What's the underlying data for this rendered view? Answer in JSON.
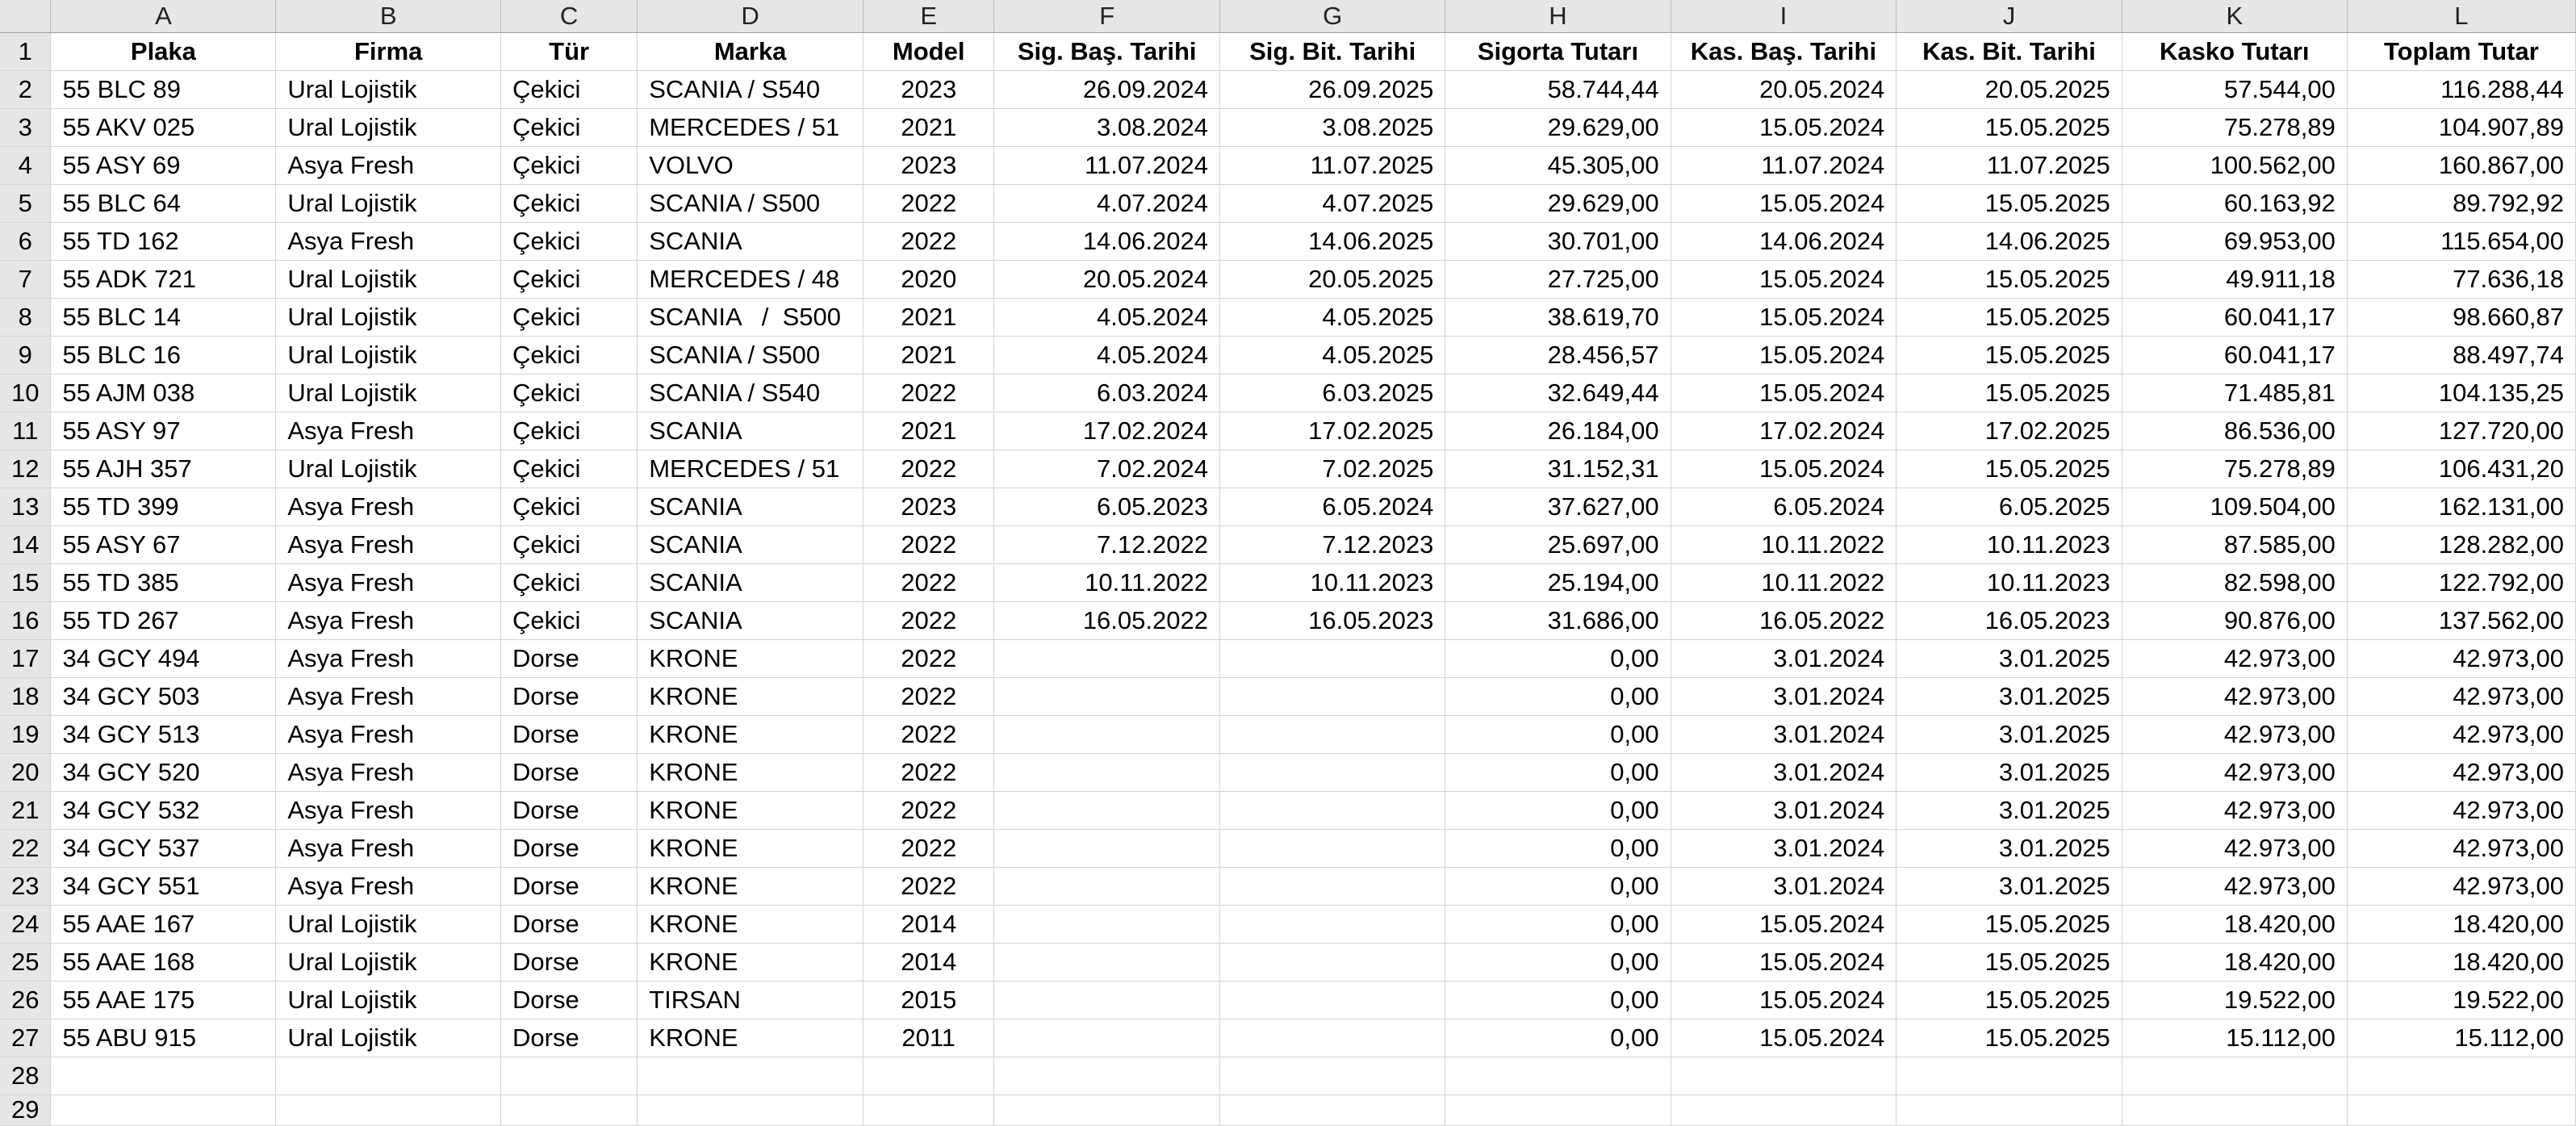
{
  "sheet": {
    "columns": [
      "A",
      "B",
      "C",
      "D",
      "E",
      "F",
      "G",
      "H",
      "I",
      "J",
      "K",
      "L"
    ],
    "headers": [
      "Plaka",
      "Firma",
      "Tür",
      "Marka",
      "Model",
      "Sig. Baş. Tarihi",
      "Sig. Bit. Tarihi",
      "Sigorta Tutarı",
      "Kas. Baş. Tarihi",
      "Kas. Bit. Tarihi",
      "Kasko Tutarı",
      "Toplam Tutar"
    ],
    "rows": [
      [
        "55 BLC 89",
        "Ural Lojistik",
        "Çekici",
        "SCANIA / S540",
        "2023",
        "26.09.2024",
        "26.09.2025",
        "58.744,44",
        "20.05.2024",
        "20.05.2025",
        "57.544,00",
        "116.288,44"
      ],
      [
        "55 AKV 025",
        "Ural Lojistik",
        "Çekici",
        "MERCEDES / 51",
        "2021",
        "3.08.2024",
        "3.08.2025",
        "29.629,00",
        "15.05.2024",
        "15.05.2025",
        "75.278,89",
        "104.907,89"
      ],
      [
        "55 ASY 69",
        "Asya Fresh",
        "Çekici",
        "VOLVO",
        "2023",
        "11.07.2024",
        "11.07.2025",
        "45.305,00",
        "11.07.2024",
        "11.07.2025",
        "100.562,00",
        "160.867,00"
      ],
      [
        "55 BLC 64",
        "Ural Lojistik",
        "Çekici",
        "SCANIA / S500",
        "2022",
        "4.07.2024",
        "4.07.2025",
        "29.629,00",
        "15.05.2024",
        "15.05.2025",
        "60.163,92",
        "89.792,92"
      ],
      [
        "55 TD 162",
        "Asya Fresh",
        "Çekici",
        "SCANIA",
        "2022",
        "14.06.2024",
        "14.06.2025",
        "30.701,00",
        "14.06.2024",
        "14.06.2025",
        "69.953,00",
        "115.654,00"
      ],
      [
        "55 ADK 721",
        "Ural Lojistik",
        "Çekici",
        "MERCEDES / 48",
        "2020",
        "20.05.2024",
        "20.05.2025",
        "27.725,00",
        "15.05.2024",
        "15.05.2025",
        "49.911,18",
        "77.636,18"
      ],
      [
        "55 BLC 14",
        "Ural Lojistik",
        "Çekici",
        "SCANIA   /  S500",
        "2021",
        "4.05.2024",
        "4.05.2025",
        "38.619,70",
        "15.05.2024",
        "15.05.2025",
        "60.041,17",
        "98.660,87"
      ],
      [
        "55 BLC 16",
        "Ural Lojistik",
        "Çekici",
        "SCANIA / S500",
        "2021",
        "4.05.2024",
        "4.05.2025",
        "28.456,57",
        "15.05.2024",
        "15.05.2025",
        "60.041,17",
        "88.497,74"
      ],
      [
        "55 AJM 038",
        "Ural Lojistik",
        "Çekici",
        "SCANIA / S540",
        "2022",
        "6.03.2024",
        "6.03.2025",
        "32.649,44",
        "15.05.2024",
        "15.05.2025",
        "71.485,81",
        "104.135,25"
      ],
      [
        "55 ASY 97",
        "Asya Fresh",
        "Çekici",
        "SCANIA",
        "2021",
        "17.02.2024",
        "17.02.2025",
        "26.184,00",
        "17.02.2024",
        "17.02.2025",
        "86.536,00",
        "127.720,00"
      ],
      [
        "55 AJH 357",
        "Ural Lojistik",
        "Çekici",
        "MERCEDES / 51",
        "2022",
        "7.02.2024",
        "7.02.2025",
        "31.152,31",
        "15.05.2024",
        "15.05.2025",
        "75.278,89",
        "106.431,20"
      ],
      [
        "55 TD 399",
        "Asya Fresh",
        "Çekici",
        "SCANIA",
        "2023",
        "6.05.2023",
        "6.05.2024",
        "37.627,00",
        "6.05.2024",
        "6.05.2025",
        "109.504,00",
        "162.131,00"
      ],
      [
        "55 ASY 67",
        "Asya Fresh",
        "Çekici",
        "SCANIA",
        "2022",
        "7.12.2022",
        "7.12.2023",
        "25.697,00",
        "10.11.2022",
        "10.11.2023",
        "87.585,00",
        "128.282,00"
      ],
      [
        "55 TD 385",
        "Asya Fresh",
        "Çekici",
        "SCANIA",
        "2022",
        "10.11.2022",
        "10.11.2023",
        "25.194,00",
        "10.11.2022",
        "10.11.2023",
        "82.598,00",
        "122.792,00"
      ],
      [
        "55 TD 267",
        "Asya Fresh",
        "Çekici",
        "SCANIA",
        "2022",
        "16.05.2022",
        "16.05.2023",
        "31.686,00",
        "16.05.2022",
        "16.05.2023",
        "90.876,00",
        "137.562,00"
      ],
      [
        "34 GCY 494",
        "Asya Fresh",
        "Dorse",
        "KRONE",
        "2022",
        "",
        "",
        "0,00",
        "3.01.2024",
        "3.01.2025",
        "42.973,00",
        "42.973,00"
      ],
      [
        "34 GCY 503",
        "Asya Fresh",
        "Dorse",
        "KRONE",
        "2022",
        "",
        "",
        "0,00",
        "3.01.2024",
        "3.01.2025",
        "42.973,00",
        "42.973,00"
      ],
      [
        "34 GCY 513",
        "Asya Fresh",
        "Dorse",
        "KRONE",
        "2022",
        "",
        "",
        "0,00",
        "3.01.2024",
        "3.01.2025",
        "42.973,00",
        "42.973,00"
      ],
      [
        "34 GCY 520",
        "Asya Fresh",
        "Dorse",
        "KRONE",
        "2022",
        "",
        "",
        "0,00",
        "3.01.2024",
        "3.01.2025",
        "42.973,00",
        "42.973,00"
      ],
      [
        "34 GCY 532",
        "Asya Fresh",
        "Dorse",
        "KRONE",
        "2022",
        "",
        "",
        "0,00",
        "3.01.2024",
        "3.01.2025",
        "42.973,00",
        "42.973,00"
      ],
      [
        "34 GCY 537",
        "Asya Fresh",
        "Dorse",
        "KRONE",
        "2022",
        "",
        "",
        "0,00",
        "3.01.2024",
        "3.01.2025",
        "42.973,00",
        "42.973,00"
      ],
      [
        "34 GCY 551",
        "Asya Fresh",
        "Dorse",
        "KRONE",
        "2022",
        "",
        "",
        "0,00",
        "3.01.2024",
        "3.01.2025",
        "42.973,00",
        "42.973,00"
      ],
      [
        "55 AAE 167",
        "Ural Lojistik",
        "Dorse",
        "KRONE",
        "2014",
        "",
        "",
        "0,00",
        "15.05.2024",
        "15.05.2025",
        "18.420,00",
        "18.420,00"
      ],
      [
        "55 AAE 168",
        "Ural Lojistik",
        "Dorse",
        "KRONE",
        "2014",
        "",
        "",
        "0,00",
        "15.05.2024",
        "15.05.2025",
        "18.420,00",
        "18.420,00"
      ],
      [
        "55 AAE 175",
        "Ural Lojistik",
        "Dorse",
        "TIRSAN",
        "2015",
        "",
        "",
        "0,00",
        "15.05.2024",
        "15.05.2025",
        "19.522,00",
        "19.522,00"
      ],
      [
        "55 ABU 915",
        "Ural Lojistik",
        "Dorse",
        "KRONE",
        "2011",
        "",
        "",
        "0,00",
        "15.05.2024",
        "15.05.2025",
        "15.112,00",
        "15.112,00"
      ]
    ],
    "empty_row_numbers": [
      "28",
      "29"
    ]
  }
}
